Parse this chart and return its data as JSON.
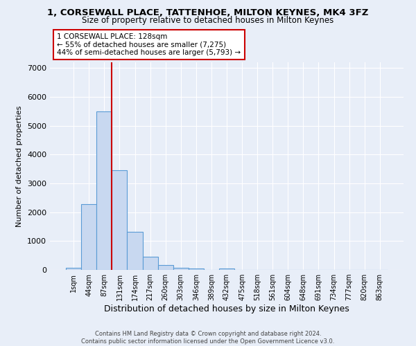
{
  "title": "1, CORSEWALL PLACE, TATTENHOE, MILTON KEYNES, MK4 3FZ",
  "subtitle": "Size of property relative to detached houses in Milton Keynes",
  "xlabel": "Distribution of detached houses by size in Milton Keynes",
  "ylabel": "Number of detached properties",
  "footer_line1": "Contains HM Land Registry data © Crown copyright and database right 2024.",
  "footer_line2": "Contains public sector information licensed under the Open Government Licence v3.0.",
  "bar_labels": [
    "1sqm",
    "44sqm",
    "87sqm",
    "131sqm",
    "174sqm",
    "217sqm",
    "260sqm",
    "303sqm",
    "346sqm",
    "389sqm",
    "432sqm",
    "475sqm",
    "518sqm",
    "561sqm",
    "604sqm",
    "648sqm",
    "691sqm",
    "734sqm",
    "777sqm",
    "820sqm",
    "863sqm"
  ],
  "bar_heights": [
    70,
    2270,
    5500,
    3450,
    1310,
    460,
    160,
    75,
    60,
    0,
    60,
    0,
    0,
    0,
    0,
    0,
    0,
    0,
    0,
    0,
    0
  ],
  "bar_color": "#c8d8f0",
  "bar_edge_color": "#5a9bd5",
  "ylim": [
    0,
    7200
  ],
  "yticks": [
    0,
    1000,
    2000,
    3000,
    4000,
    5000,
    6000,
    7000
  ],
  "property_label": "1 CORSEWALL PLACE: 128sqm",
  "annotation_line1": "← 55% of detached houses are smaller (7,275)",
  "annotation_line2": "44% of semi-detached houses are larger (5,793) →",
  "vline_color": "#cc0000",
  "annotation_box_color": "#ffffff",
  "annotation_box_edge": "#cc0000",
  "bg_color": "#e8eef8",
  "grid_color": "#ffffff",
  "bar_width": 1.0,
  "vline_x": 2.5
}
